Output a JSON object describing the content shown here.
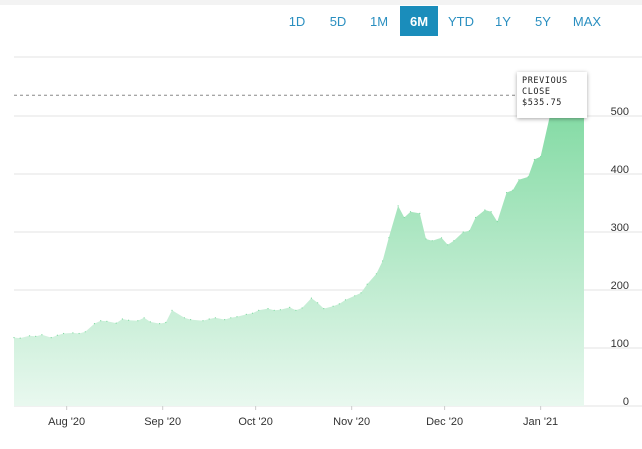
{
  "range_tabs": [
    {
      "label": "1D"
    },
    {
      "label": "5D"
    },
    {
      "label": "1M"
    },
    {
      "label": "6M",
      "active": true
    },
    {
      "label": "YTD"
    },
    {
      "label": "1Y"
    },
    {
      "label": "5Y"
    },
    {
      "label": "MAX"
    }
  ],
  "callout": {
    "line1": "PREVIOUS",
    "line2": "CLOSE",
    "value": "$535.75"
  },
  "colors": {
    "accent": "#1a8dbb",
    "area_top": "#7ed9a0",
    "area_bottom": "#e9f8ef",
    "close_line": "#888888"
  },
  "chart_data": {
    "type": "area",
    "title": "",
    "xlabel": "",
    "ylabel": "",
    "ylim": [
      0,
      560
    ],
    "y_ticks": [
      "0",
      "100",
      "200",
      "300",
      "400",
      "500"
    ],
    "x_ticks": [
      "Aug '20",
      "Sep '20",
      "Oct '20",
      "Nov '20",
      "Dec '20",
      "Jan '21"
    ],
    "x_tick_dates": [
      "2020-08-01",
      "2020-09-01",
      "2020-10-01",
      "2020-11-01",
      "2020-12-01",
      "2021-01-01"
    ],
    "x_range": [
      "2020-07-15",
      "2021-01-15"
    ],
    "previous_close": 535.75,
    "grid": true,
    "series": [
      {
        "x": [
          "2020-07-15",
          "2020-07-17",
          "2020-07-20",
          "2020-07-22",
          "2020-07-24",
          "2020-07-27",
          "2020-07-29",
          "2020-07-31",
          "2020-08-03",
          "2020-08-05",
          "2020-08-07",
          "2020-08-10",
          "2020-08-12",
          "2020-08-14",
          "2020-08-17",
          "2020-08-19",
          "2020-08-21",
          "2020-08-24",
          "2020-08-26",
          "2020-08-28",
          "2020-08-31",
          "2020-09-02",
          "2020-09-04",
          "2020-09-08",
          "2020-09-10",
          "2020-09-14",
          "2020-09-16",
          "2020-09-18",
          "2020-09-21",
          "2020-09-23",
          "2020-09-25",
          "2020-09-28",
          "2020-09-30",
          "2020-10-02",
          "2020-10-05",
          "2020-10-07",
          "2020-10-09",
          "2020-10-12",
          "2020-10-14",
          "2020-10-16",
          "2020-10-19",
          "2020-10-21",
          "2020-10-23",
          "2020-10-26",
          "2020-10-28",
          "2020-10-30",
          "2020-11-02",
          "2020-11-04",
          "2020-11-06",
          "2020-11-09",
          "2020-11-11",
          "2020-11-13",
          "2020-11-16",
          "2020-11-18",
          "2020-11-20",
          "2020-11-23",
          "2020-11-25",
          "2020-11-27",
          "2020-11-30",
          "2020-12-02",
          "2020-12-04",
          "2020-12-07",
          "2020-12-09",
          "2020-12-11",
          "2020-12-14",
          "2020-12-16",
          "2020-12-18",
          "2020-12-21",
          "2020-12-23",
          "2020-12-25",
          "2020-12-28",
          "2020-12-30",
          "2021-01-01",
          "2021-01-04",
          "2021-01-06",
          "2021-01-08",
          "2021-01-11",
          "2021-01-13",
          "2021-01-15"
        ],
        "values": [
          118,
          117,
          121,
          120,
          123,
          118,
          122,
          125,
          126,
          125,
          128,
          142,
          147,
          146,
          143,
          150,
          148,
          147,
          152,
          145,
          142,
          144,
          165,
          152,
          149,
          147,
          150,
          152,
          149,
          152,
          154,
          158,
          160,
          165,
          168,
          165,
          166,
          170,
          165,
          169,
          186,
          178,
          168,
          172,
          176,
          183,
          190,
          195,
          210,
          228,
          250,
          290,
          345,
          325,
          335,
          332,
          288,
          285,
          290,
          278,
          285,
          300,
          302,
          325,
          338,
          335,
          318,
          368,
          372,
          390,
          395,
          425,
          430,
          500,
          520,
          535.75,
          535.75,
          535.75,
          535.75
        ]
      }
    ]
  }
}
